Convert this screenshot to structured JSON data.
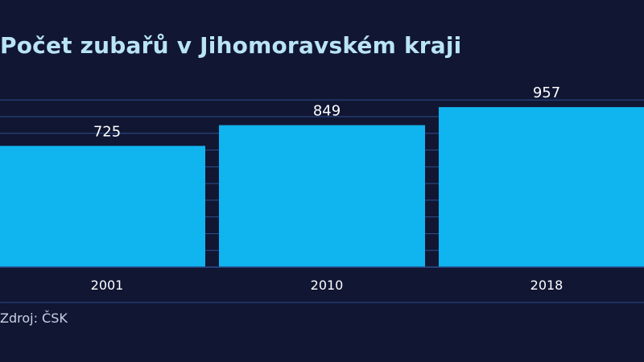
{
  "chart_data": {
    "type": "bar",
    "title": "Počet zubařů v Jihomoravském kraji",
    "categories": [
      "2001",
      "2010",
      "2018"
    ],
    "values": [
      725,
      849,
      957
    ],
    "xlabel": "",
    "ylabel": "",
    "ylim": [
      0,
      1000
    ],
    "grid": true,
    "legend": "none",
    "source": "Zdroj: ČSK"
  },
  "colors": {
    "background": "#111633",
    "bar": "#10b4ee",
    "gridline": "#2c4f8c",
    "title": "#b9e4f6"
  }
}
